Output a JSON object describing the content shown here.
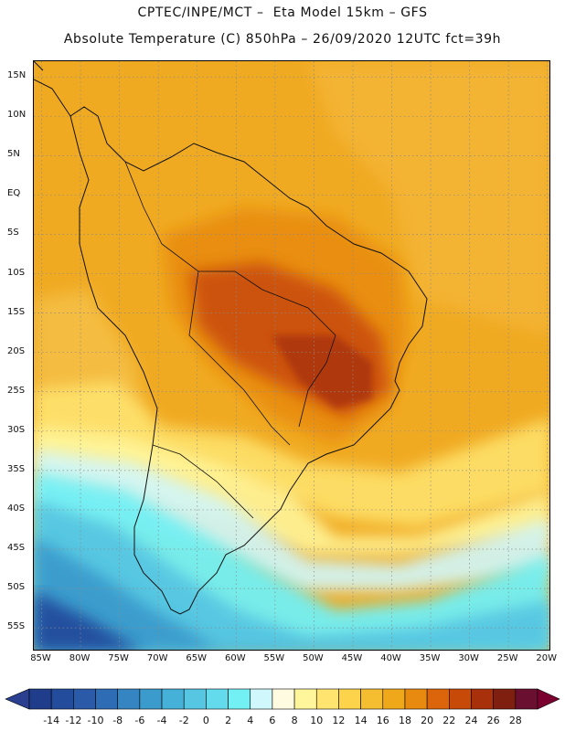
{
  "title": {
    "line1": "CPTEC/INPE/MCT –  Eta Model 15km – GFS",
    "line2": "Absolute Temperature (C) 850hPa – 26/09/2020 12UTC fct=39h"
  },
  "map": {
    "lat_ticks": [
      "15N",
      "10N",
      "5N",
      "EQ",
      "5S",
      "10S",
      "15S",
      "20S",
      "25S",
      "30S",
      "35S",
      "40S",
      "45S",
      "50S",
      "55S"
    ],
    "lat_values": [
      15,
      10,
      5,
      0,
      -5,
      -10,
      -15,
      -20,
      -25,
      -30,
      -35,
      -40,
      -45,
      -50,
      -55
    ],
    "lon_ticks": [
      "85W",
      "80W",
      "75W",
      "70W",
      "65W",
      "60W",
      "55W",
      "50W",
      "45W",
      "40W",
      "35W",
      "30W",
      "25W",
      "20W"
    ],
    "lon_values": [
      -85,
      -80,
      -75,
      -70,
      -65,
      -60,
      -55,
      -50,
      -45,
      -40,
      -35,
      -30,
      -25,
      -20
    ],
    "extent": {
      "lon_min": -86,
      "lon_max": -19.5,
      "lat_min": -58,
      "lat_max": 17
    }
  },
  "colorbar": {
    "labels": [
      "-14",
      "-12",
      "-10",
      "-8",
      "-6",
      "-4",
      "-2",
      "0",
      "2",
      "4",
      "6",
      "8",
      "10",
      "12",
      "14",
      "16",
      "18",
      "20",
      "22",
      "24",
      "26",
      "28"
    ],
    "colors": [
      "#1f3d8a",
      "#244c9c",
      "#2a5aa8",
      "#2f6cb6",
      "#3585c2",
      "#3b9bcc",
      "#45b1d8",
      "#56c6e2",
      "#63dbec",
      "#72f0f4",
      "#d0f7fb",
      "#fffbe0",
      "#fff59a",
      "#ffe570",
      "#fcd34a",
      "#f5be30",
      "#efa81a",
      "#e88a10",
      "#dc640a",
      "#c84a08",
      "#a8300a",
      "#7e1f10",
      "#6a0f30"
    ],
    "under_color": "#2a3f8f",
    "over_color": "#7a0030"
  },
  "field": {
    "background": "#f0aa22"
  }
}
